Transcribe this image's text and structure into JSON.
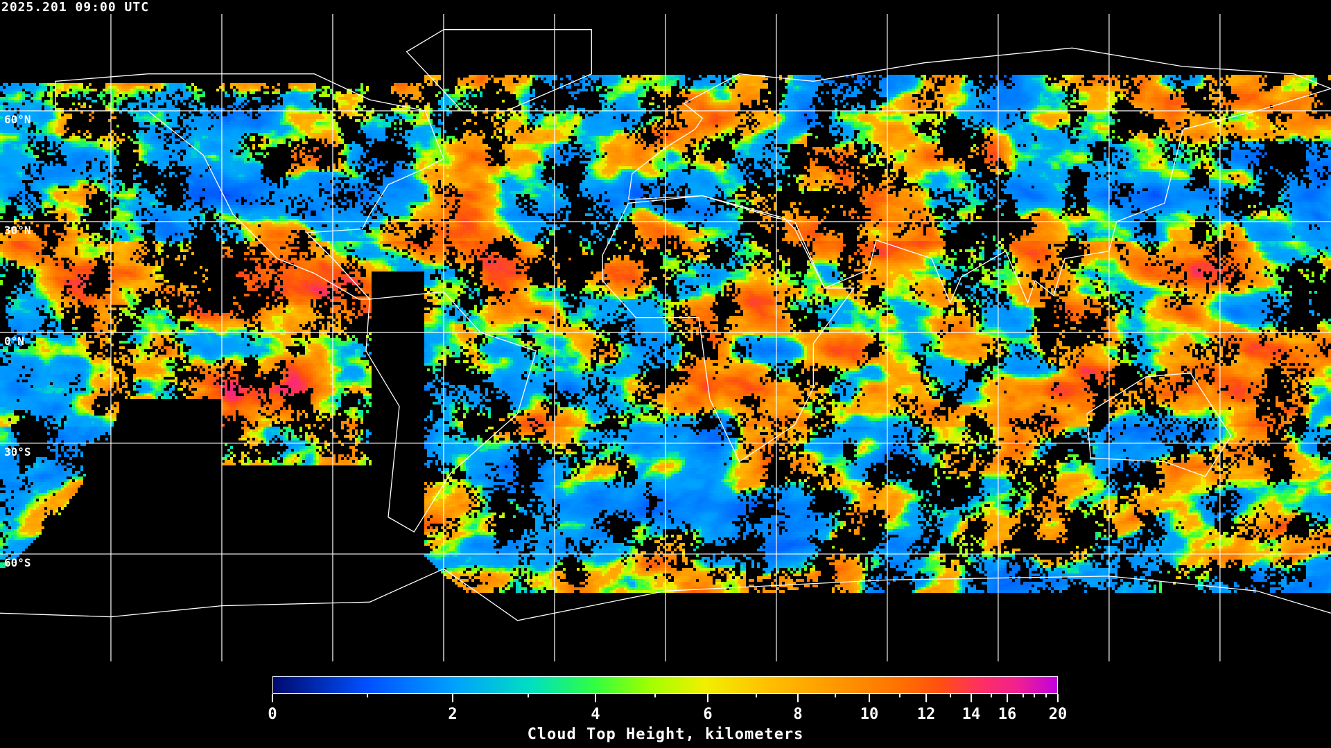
{
  "header": {
    "timestamp": "2025.201 09:00 UTC"
  },
  "map": {
    "projection": "equirectangular",
    "graticule_lon_step_deg": 30,
    "lat_labels": [
      "60°N",
      "30°N",
      "0°N",
      "30°S",
      "60°S"
    ],
    "grid_color": "#ffffff",
    "coastline_color": "#ffffff",
    "no_data_color": "#000000"
  },
  "colorbar": {
    "title": "Cloud Top Height, kilometers",
    "min": 0,
    "max": 20,
    "major_ticks": [
      "0",
      "2",
      "4",
      "6",
      "8",
      "10",
      "12",
      "14",
      "16",
      "20"
    ],
    "minor_ticks": [
      1,
      3,
      5,
      7,
      9,
      11,
      13,
      15,
      17,
      18,
      19
    ],
    "colormap": [
      "#000a6e",
      "#0050ff",
      "#00a0ff",
      "#00e0c0",
      "#30ff40",
      "#a0ff00",
      "#f0f000",
      "#ffc000",
      "#ffa000",
      "#ff7000",
      "#ff5010",
      "#ff3060",
      "#f02090",
      "#c000e0"
    ]
  }
}
